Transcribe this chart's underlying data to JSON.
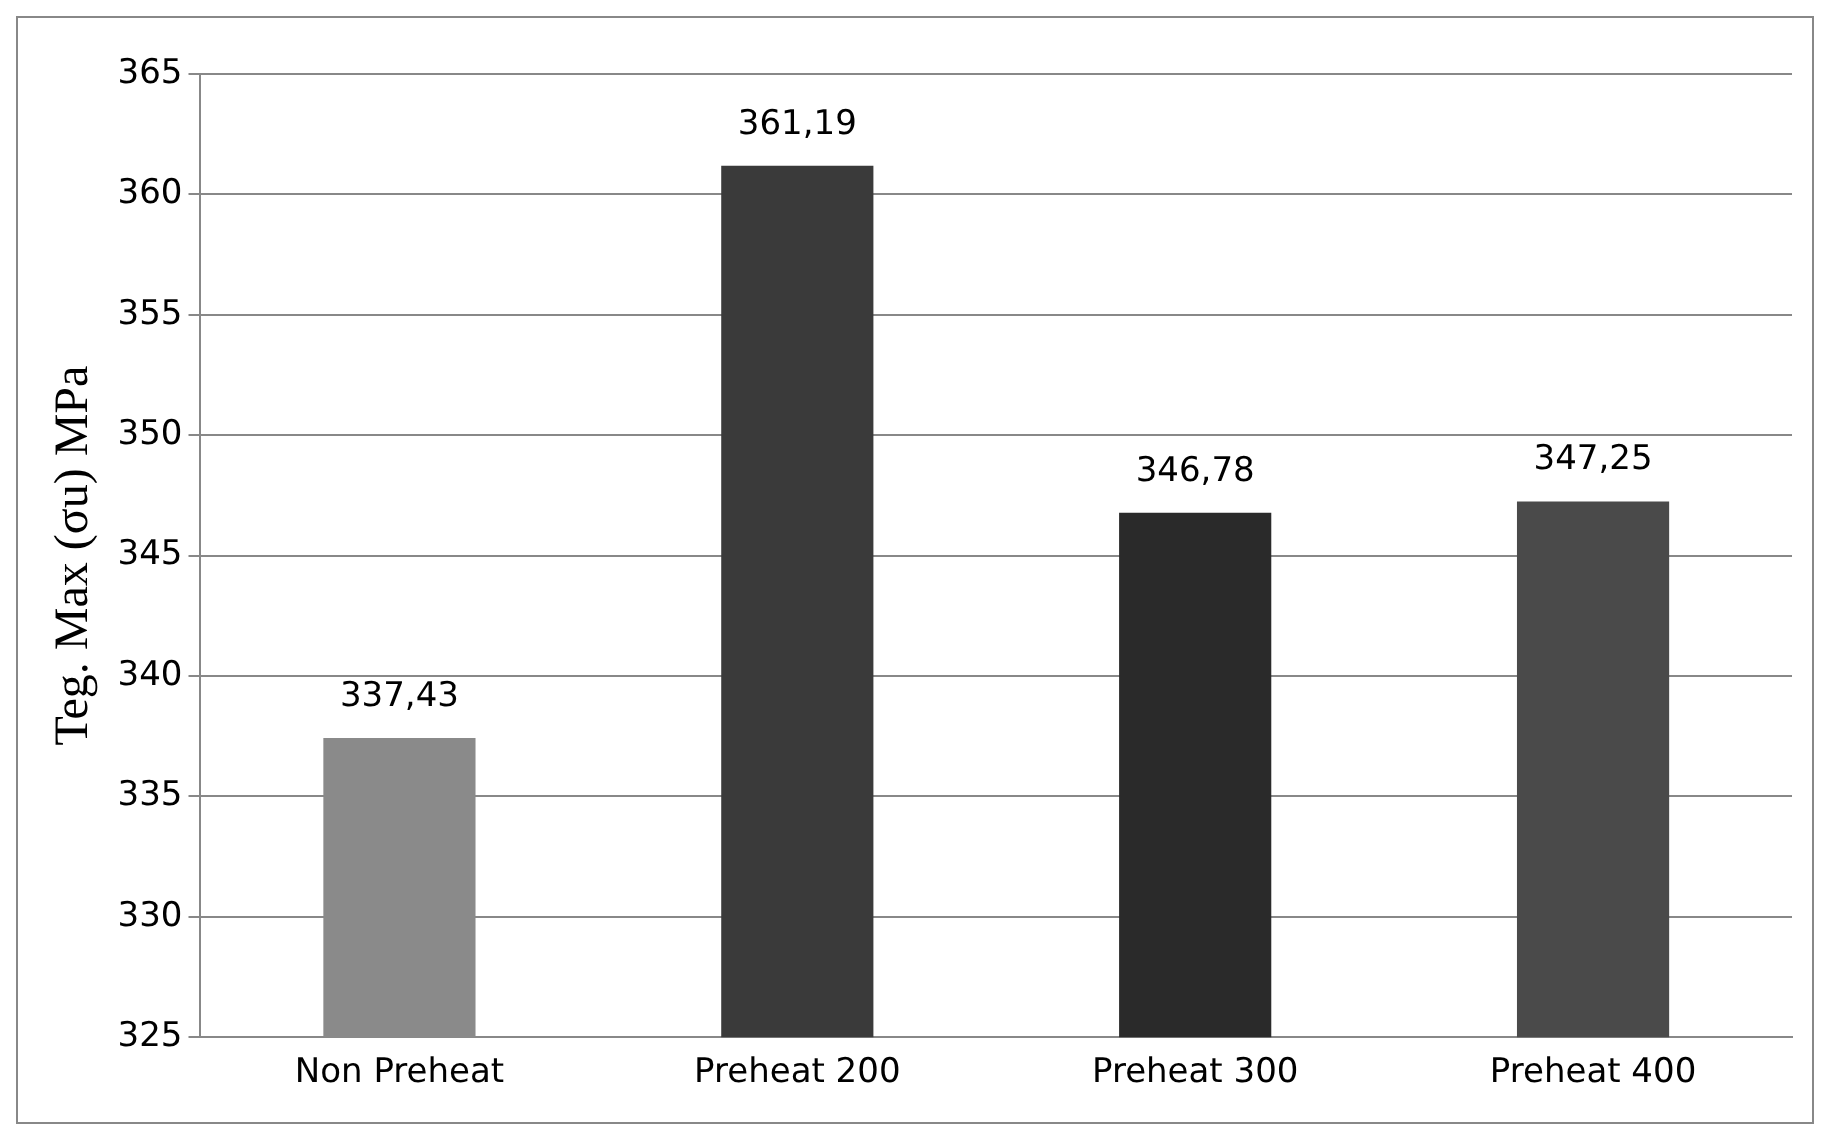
{
  "chart_data": {
    "type": "bar",
    "ylabel": "Teg. Max (σu) MPa",
    "categories": [
      "Non Preheat",
      "Preheat 200",
      "Preheat 300",
      "Preheat 400"
    ],
    "values": [
      337.43,
      361.19,
      346.78,
      347.25
    ],
    "colors": [
      "#8a8a8a",
      "#3a3a3a",
      "#2a2a2a",
      "#4a4a4a"
    ],
    "value_labels": [
      "337,43",
      "361,19",
      "346,78",
      "347,25"
    ],
    "ylim": [
      325,
      365
    ],
    "yticks": [
      325,
      330,
      335,
      340,
      345,
      350,
      355,
      360,
      365
    ],
    "grid": "y",
    "legend": false
  }
}
